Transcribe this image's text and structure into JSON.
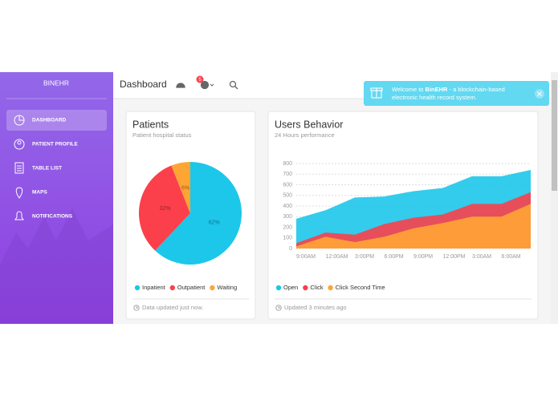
{
  "sidebar": {
    "brand": "BINEHR",
    "nav": [
      "DASHBOARD",
      "PATIENT PROFILE",
      "TABLE LIST",
      "MAPS",
      "NOTIFICATIONS"
    ]
  },
  "topbar": {
    "title": "Dashboard",
    "badge": 5
  },
  "notification": {
    "prefix": "Welcome to ",
    "brand": "BinEHR",
    "line1": " - a blockchain-based",
    "line2": "electronic health record system."
  },
  "cards": [
    {
      "title": "Patients",
      "subtitle": "Patient hospital status",
      "footer": "Data updated just now."
    },
    {
      "title": "Users Behavior",
      "subtitle": "24 Hours performance",
      "footer": "Updated 3 minutes ago"
    }
  ],
  "chart_data": [
    {
      "type": "pie",
      "categories": [
        "Inpatient",
        "Outpatient",
        "Waiting"
      ],
      "values": [
        62,
        32,
        6
      ],
      "value_labels": [
        "62%",
        "32%",
        "6%"
      ],
      "colors": [
        "#1dc7ea",
        "#fb404b",
        "#ffa534"
      ]
    },
    {
      "type": "area",
      "categories": [
        "9:00AM",
        "12:00AM",
        "3:00PM",
        "6:00PM",
        "9:00PM",
        "12:00PM",
        "3:00AM",
        "6:00AM",
        null
      ],
      "series": [
        {
          "name": "Open",
          "color": "#1dc7ea",
          "values": [
            280,
            360,
            480,
            490,
            540,
            570,
            680,
            680,
            740
          ]
        },
        {
          "name": "Click",
          "color": "#fb404b",
          "values": [
            50,
            150,
            130,
            230,
            290,
            320,
            420,
            420,
            530
          ]
        },
        {
          "name": "Click Second Time",
          "color": "#ffa534",
          "values": [
            20,
            110,
            60,
            110,
            190,
            240,
            300,
            300,
            420
          ]
        }
      ],
      "ylim": [
        0,
        800
      ],
      "yticks": [
        0,
        100,
        200,
        300,
        400,
        500,
        600,
        700,
        800
      ],
      "grid": true
    }
  ]
}
